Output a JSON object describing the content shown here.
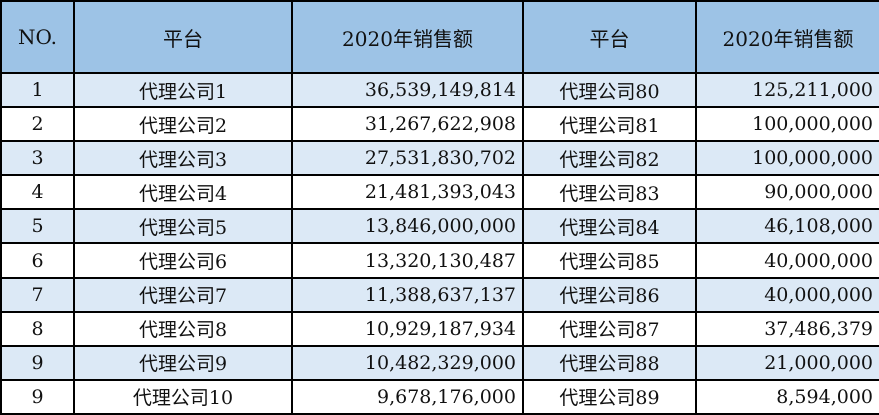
{
  "headers": [
    "NO.",
    "平台",
    "2020年销售额",
    "平台",
    "2020年销售额"
  ],
  "rows": [
    [
      "1",
      "代理公司1",
      "36,539,149,814",
      "代理公司80",
      "125,211,000"
    ],
    [
      "2",
      "代理公司2",
      "31,267,622,908",
      "代理公司81",
      "100,000,000"
    ],
    [
      "3",
      "代理公司3",
      "27,531,830,702",
      "代理公司82",
      "100,000,000"
    ],
    [
      "4",
      "代理公司4",
      "21,481,393,043",
      "代理公司83",
      "90,000,000"
    ],
    [
      "5",
      "代理公司5",
      "13,846,000,000",
      "代理公司84",
      "46,108,000"
    ],
    [
      "6",
      "代理公司6",
      "13,320,130,487",
      "代理公司85",
      "40,000,000"
    ],
    [
      "7",
      "代理公司7",
      "11,388,637,137",
      "代理公司86",
      "40,000,000"
    ],
    [
      "8",
      "代理公司8",
      "10,929,187,934",
      "代理公司87",
      "37,486,379"
    ],
    [
      "9",
      "代理公司9",
      "10,482,329,000",
      "代理公司88",
      "21,000,000"
    ],
    [
      "9",
      "代理公司10",
      "9,678,176,000",
      "代理公司89",
      "8,594,000"
    ]
  ],
  "colors": {
    "header_bg": "#9dc3e6",
    "stripe_bg": "#dce9f6",
    "border": "#000000"
  }
}
